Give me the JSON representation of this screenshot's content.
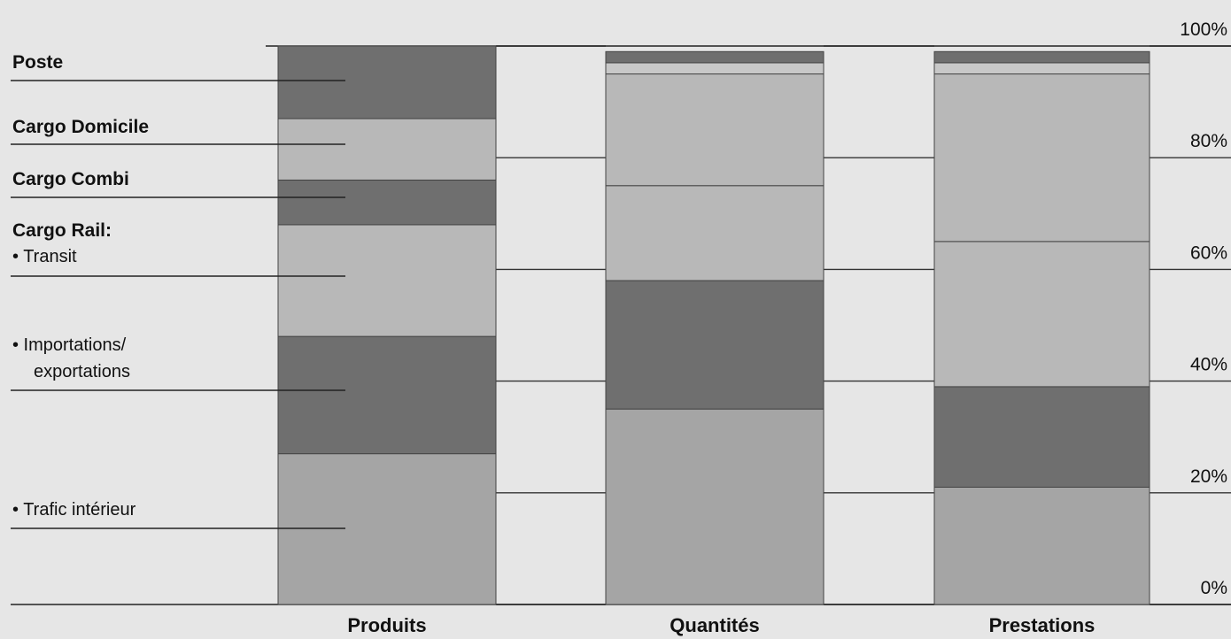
{
  "chart_data": {
    "type": "bar",
    "stacked": true,
    "normalized": true,
    "categories": [
      "Produits",
      "Quantités",
      "Prestations"
    ],
    "y_ticks": [
      "0%",
      "20%",
      "40%",
      "60%",
      "80%",
      "100%"
    ],
    "ylim": [
      0,
      100
    ],
    "grid": true,
    "legend": "left",
    "series": [
      {
        "name": "• Trafic intérieur",
        "values": [
          27,
          35,
          21
        ],
        "color": "#a5a5a5"
      },
      {
        "name": "• Importations/ exportations",
        "name_lines": [
          "• Importations/",
          "exportations"
        ],
        "values": [
          21,
          23,
          18
        ],
        "color": "#6f6f6f"
      },
      {
        "name": "• Transit",
        "name_lines": [
          "Cargo Rail:",
          "• Transit"
        ],
        "group_label": "Cargo Rail:",
        "values": [
          20,
          17,
          26
        ],
        "color": "#b8b8b8"
      },
      {
        "name": "Cargo Combi",
        "values": [
          8,
          0,
          0
        ],
        "color": "#6f6f6f"
      },
      {
        "name": "Cargo Domicile",
        "values": [
          11,
          20,
          30
        ],
        "color": "#b8b8b8"
      },
      {
        "name": "Poste",
        "values": [
          13,
          2,
          2
        ],
        "color": "#6f6f6f"
      }
    ],
    "extra_segments": [
      {
        "category": "Quantités",
        "between": "Cargo Domicile/Poste",
        "value": 2,
        "color": "#c8c8c8"
      },
      {
        "category": "Prestations",
        "between": "Cargo Domicile/Poste",
        "value": 2,
        "color": "#c8c8c8"
      }
    ]
  }
}
